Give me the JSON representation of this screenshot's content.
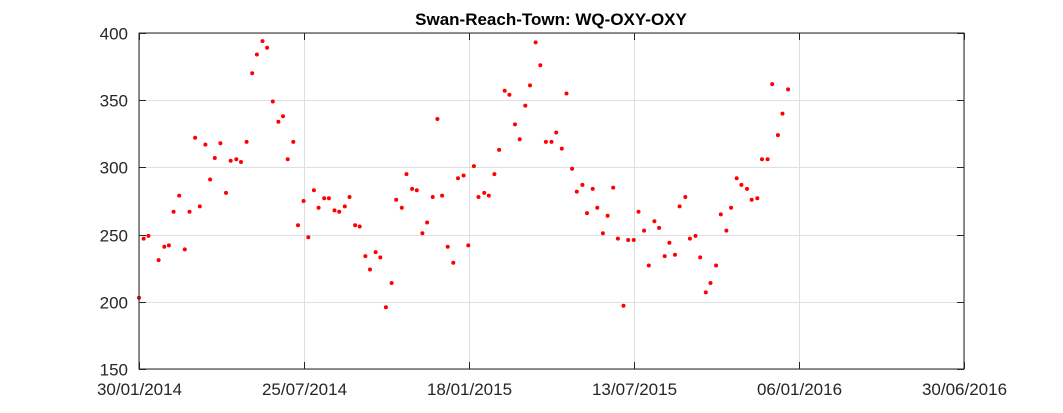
{
  "chart_data": {
    "type": "scatter",
    "title": "Swan-Reach-Town: WQ-OXY-OXY",
    "xlabel": "",
    "ylabel": "",
    "xlim": [
      "2014-01-30",
      "2016-06-30"
    ],
    "ylim": [
      150,
      400
    ],
    "x_tick_labels": [
      "30/01/2014",
      "25/07/2014",
      "18/01/2015",
      "13/07/2015",
      "06/01/2016",
      "30/06/2016"
    ],
    "y_tick_labels": [
      "150",
      "200",
      "250",
      "300",
      "350",
      "400"
    ],
    "grid": true,
    "marker_color": "#ff0000",
    "series": [
      {
        "points": [
          [
            "2014-01-30",
            203
          ],
          [
            "2014-02-04",
            247
          ],
          [
            "2014-02-09",
            249
          ],
          [
            "2014-02-20",
            231
          ],
          [
            "2014-02-26",
            241
          ],
          [
            "2014-03-03",
            242
          ],
          [
            "2014-03-08",
            267
          ],
          [
            "2014-03-14",
            279
          ],
          [
            "2014-03-20",
            239
          ],
          [
            "2014-03-25",
            267
          ],
          [
            "2014-03-31",
            322
          ],
          [
            "2014-04-05",
            271
          ],
          [
            "2014-04-11",
            317
          ],
          [
            "2014-04-16",
            291
          ],
          [
            "2014-04-21",
            307
          ],
          [
            "2014-04-27",
            318
          ],
          [
            "2014-05-03",
            281
          ],
          [
            "2014-05-08",
            305
          ],
          [
            "2014-05-14",
            306
          ],
          [
            "2014-05-19",
            304
          ],
          [
            "2014-05-25",
            319
          ],
          [
            "2014-05-31",
            370
          ],
          [
            "2014-06-05",
            384
          ],
          [
            "2014-06-11",
            394
          ],
          [
            "2014-06-16",
            389
          ],
          [
            "2014-06-22",
            349
          ],
          [
            "2014-06-28",
            334
          ],
          [
            "2014-07-03",
            338
          ],
          [
            "2014-07-08",
            306
          ],
          [
            "2014-07-14",
            319
          ],
          [
            "2014-07-19",
            257
          ],
          [
            "2014-07-25",
            275
          ],
          [
            "2014-07-30",
            248
          ],
          [
            "2014-08-05",
            283
          ],
          [
            "2014-08-10",
            270
          ],
          [
            "2014-08-16",
            277
          ],
          [
            "2014-08-21",
            277
          ],
          [
            "2014-08-27",
            268
          ],
          [
            "2014-09-01",
            267
          ],
          [
            "2014-09-07",
            271
          ],
          [
            "2014-09-12",
            278
          ],
          [
            "2014-09-18",
            257
          ],
          [
            "2014-09-23",
            256
          ],
          [
            "2014-09-29",
            234
          ],
          [
            "2014-10-04",
            224
          ],
          [
            "2014-10-10",
            237
          ],
          [
            "2014-10-15",
            233
          ],
          [
            "2014-10-21",
            196
          ],
          [
            "2014-10-27",
            214
          ],
          [
            "2014-11-01",
            276
          ],
          [
            "2014-11-07",
            270
          ],
          [
            "2014-11-12",
            295
          ],
          [
            "2014-11-18",
            284
          ],
          [
            "2014-11-23",
            283
          ],
          [
            "2014-11-29",
            251
          ],
          [
            "2014-12-04",
            259
          ],
          [
            "2014-12-10",
            278
          ],
          [
            "2014-12-15",
            336
          ],
          [
            "2014-12-20",
            279
          ],
          [
            "2014-12-26",
            241
          ],
          [
            "2015-01-01",
            229
          ],
          [
            "2015-01-06",
            292
          ],
          [
            "2015-01-12",
            294
          ],
          [
            "2015-01-17",
            242
          ],
          [
            "2015-01-23",
            301
          ],
          [
            "2015-01-28",
            278
          ],
          [
            "2015-02-03",
            281
          ],
          [
            "2015-02-08",
            279
          ],
          [
            "2015-02-14",
            295
          ],
          [
            "2015-02-19",
            313
          ],
          [
            "2015-02-25",
            357
          ],
          [
            "2015-03-02",
            354
          ],
          [
            "2015-03-08",
            332
          ],
          [
            "2015-03-13",
            321
          ],
          [
            "2015-03-19",
            346
          ],
          [
            "2015-03-24",
            361
          ],
          [
            "2015-03-30",
            393
          ],
          [
            "2015-04-04",
            376
          ],
          [
            "2015-04-10",
            319
          ],
          [
            "2015-04-16",
            319
          ],
          [
            "2015-04-21",
            326
          ],
          [
            "2015-04-27",
            314
          ],
          [
            "2015-05-02",
            355
          ],
          [
            "2015-05-08",
            299
          ],
          [
            "2015-05-13",
            282
          ],
          [
            "2015-05-19",
            287
          ],
          [
            "2015-05-24",
            266
          ],
          [
            "2015-05-30",
            284
          ],
          [
            "2015-06-04",
            270
          ],
          [
            "2015-06-10",
            251
          ],
          [
            "2015-06-15",
            264
          ],
          [
            "2015-06-21",
            285
          ],
          [
            "2015-06-26",
            247
          ],
          [
            "2015-07-02",
            197
          ],
          [
            "2015-07-07",
            246
          ],
          [
            "2015-07-13",
            246
          ],
          [
            "2015-07-18",
            267
          ],
          [
            "2015-07-24",
            253
          ],
          [
            "2015-07-29",
            227
          ],
          [
            "2015-08-04",
            260
          ],
          [
            "2015-08-09",
            255
          ],
          [
            "2015-08-15",
            234
          ],
          [
            "2015-08-20",
            244
          ],
          [
            "2015-08-26",
            235
          ],
          [
            "2015-08-31",
            271
          ],
          [
            "2015-09-06",
            278
          ],
          [
            "2015-09-11",
            247
          ],
          [
            "2015-09-17",
            249
          ],
          [
            "2015-09-22",
            233
          ],
          [
            "2015-09-28",
            207
          ],
          [
            "2015-10-03",
            214
          ],
          [
            "2015-10-09",
            227
          ],
          [
            "2015-10-14",
            265
          ],
          [
            "2015-10-20",
            253
          ],
          [
            "2015-10-25",
            270
          ],
          [
            "2015-10-31",
            292
          ],
          [
            "2015-11-05",
            287
          ],
          [
            "2015-11-11",
            284
          ],
          [
            "2015-11-16",
            276
          ],
          [
            "2015-11-22",
            277
          ],
          [
            "2015-11-27",
            306
          ],
          [
            "2015-12-03",
            306
          ],
          [
            "2015-12-08",
            362
          ],
          [
            "2015-12-14",
            324
          ],
          [
            "2015-12-19",
            340
          ],
          [
            "2015-12-25",
            358
          ]
        ]
      }
    ]
  }
}
